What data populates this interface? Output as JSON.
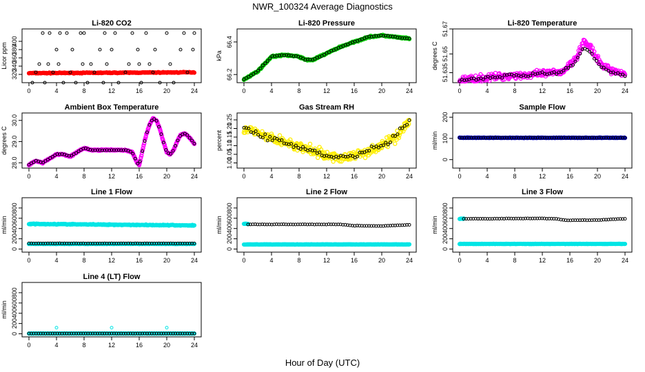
{
  "figure": {
    "title": "NWR_100324  Average Diagnostics",
    "xlabel": "Hour of Day (UTC)"
  },
  "chart_data": [
    {
      "type": "scatter",
      "title": "Li-820 CO2",
      "ylabel": "Licor ppm",
      "xlim": [
        0,
        24
      ],
      "ylim": [
        300,
        430
      ],
      "xticks": [
        "0",
        "4",
        "8",
        "12",
        "16",
        "20",
        "24"
      ],
      "yticks": [
        "320",
        "340",
        "360",
        "380",
        "400"
      ],
      "series": [
        {
          "name": "fill",
          "color": "#ff0000",
          "style": "dense-band",
          "x_start": 0,
          "x_end": 24,
          "y_start": 323,
          "y_end": 325,
          "jitter": 1.5
        },
        {
          "name": "points",
          "color": "#000000",
          "style": "scatter",
          "x": [
            0.5,
            1,
            1.5,
            2,
            2.3,
            2.8,
            3,
            3.5,
            4,
            4.3,
            4.5,
            5,
            5.5,
            6,
            6.3,
            6.8,
            7.5,
            7.8,
            8,
            8.5,
            9,
            9.5,
            10.3,
            10.8,
            11,
            11.3,
            12,
            12.5,
            13,
            14,
            14.5,
            15,
            15.8,
            16,
            16.3,
            17,
            17.5,
            18,
            18.3,
            19,
            20,
            20.5,
            21,
            22,
            22.5,
            23,
            23.8,
            24
          ],
          "y": [
            300,
            325,
            345,
            420,
            300,
            345,
            420,
            325,
            380,
            345,
            420,
            300,
            420,
            325,
            380,
            300,
            420,
            345,
            420,
            300,
            345,
            325,
            380,
            300,
            420,
            345,
            380,
            420,
            300,
            325,
            345,
            420,
            380,
            345,
            300,
            420,
            345,
            325,
            380,
            300,
            420,
            345,
            300,
            380,
            420,
            325,
            380,
            420
          ]
        }
      ]
    },
    {
      "type": "scatter",
      "title": "Li-820 Pressure",
      "ylabel": "kPa",
      "xlim": [
        0,
        24
      ],
      "ylim": [
        66.15,
        66.48
      ],
      "xticks": [
        "0",
        "4",
        "8",
        "12",
        "16",
        "20",
        "24"
      ],
      "yticks": [
        "66.2",
        "66.4"
      ],
      "series": [
        {
          "name": "fill",
          "color": "#00cc00",
          "style": "line-band",
          "x": [
            0,
            2,
            4,
            6,
            8,
            9,
            10,
            12,
            14,
            16,
            18,
            20,
            22,
            24
          ],
          "y": [
            66.17,
            66.22,
            66.31,
            66.32,
            66.31,
            66.29,
            66.29,
            66.33,
            66.37,
            66.4,
            66.43,
            66.44,
            66.43,
            66.42
          ],
          "jitter": 0.006
        },
        {
          "name": "points",
          "color": "#000000",
          "style": "line-points",
          "x": [
            0,
            2,
            4,
            6,
            8,
            9,
            10,
            12,
            14,
            16,
            18,
            20,
            22,
            24
          ],
          "y": [
            66.17,
            66.22,
            66.31,
            66.32,
            66.31,
            66.29,
            66.29,
            66.33,
            66.37,
            66.4,
            66.43,
            66.44,
            66.43,
            66.42
          ],
          "jitter": 0.004
        }
      ]
    },
    {
      "type": "scatter",
      "title": "Li-820 Temperature",
      "ylabel": "degrees C",
      "xlim": [
        0,
        24
      ],
      "ylim": [
        51.627,
        51.67
      ],
      "xticks": [
        "0",
        "4",
        "8",
        "12",
        "16",
        "20",
        "24"
      ],
      "yticks": [
        "51.635",
        "51.65",
        "51.67"
      ],
      "series": [
        {
          "name": "fill",
          "color": "#ff00ff",
          "style": "ring-band",
          "x": [
            0,
            2,
            4,
            6,
            8,
            10,
            12,
            14,
            15,
            16,
            17,
            18,
            19,
            20,
            21,
            22,
            23,
            24
          ],
          "y": [
            51.629,
            51.63,
            51.631,
            51.632,
            51.633,
            51.633,
            51.634,
            51.635,
            51.636,
            51.642,
            51.648,
            51.66,
            51.655,
            51.645,
            51.64,
            51.637,
            51.635,
            51.634
          ],
          "jitter": 0.004
        },
        {
          "name": "points",
          "color": "#000000",
          "style": "line-points",
          "x": [
            0,
            2,
            4,
            6,
            8,
            10,
            12,
            14,
            15,
            16,
            17,
            18,
            19,
            20,
            21,
            22,
            23,
            24
          ],
          "y": [
            51.629,
            51.63,
            51.631,
            51.632,
            51.633,
            51.633,
            51.634,
            51.635,
            51.636,
            51.64,
            51.646,
            51.655,
            51.652,
            51.642,
            51.638,
            51.636,
            51.634,
            51.632
          ],
          "jitter": 0.002
        }
      ]
    },
    {
      "type": "scatter",
      "title": "Ambient Box Temperature",
      "ylabel": "degrees C",
      "xlim": [
        0,
        24
      ],
      "ylim": [
        27.75,
        30.35
      ],
      "xticks": [
        "0",
        "4",
        "8",
        "12",
        "16",
        "20",
        "24"
      ],
      "yticks": [
        "28.0",
        "29.0",
        "30.0"
      ],
      "series": [
        {
          "name": "fill",
          "color": "#ff00ff",
          "style": "line-band",
          "x": [
            0,
            0.5,
            1,
            2,
            3,
            4,
            5,
            6,
            7,
            8,
            9,
            10,
            11,
            12,
            13,
            14,
            15,
            15.7,
            16,
            16.5,
            17,
            17.5,
            18,
            18.5,
            19,
            19.5,
            20,
            20.5,
            21,
            21.5,
            22,
            22.5,
            23,
            23.5,
            24
          ],
          "y": [
            27.9,
            28.0,
            28.1,
            28.0,
            28.2,
            28.4,
            28.4,
            28.3,
            28.5,
            28.7,
            28.6,
            28.6,
            28.6,
            28.6,
            28.6,
            28.6,
            28.5,
            28.0,
            27.9,
            28.6,
            29.3,
            29.8,
            30.1,
            30.0,
            29.6,
            29.0,
            28.5,
            28.4,
            28.6,
            29.0,
            29.3,
            29.4,
            29.3,
            29.1,
            28.9
          ],
          "jitter": 0.04
        },
        {
          "name": "points",
          "color": "#000000",
          "style": "line-points",
          "x": [
            0,
            0.5,
            1,
            2,
            3,
            4,
            5,
            6,
            7,
            8,
            9,
            10,
            11,
            12,
            13,
            14,
            15,
            15.7,
            16,
            16.5,
            17,
            17.5,
            18,
            18.5,
            19,
            19.5,
            20,
            20.5,
            21,
            21.5,
            22,
            22.5,
            23,
            23.5,
            24
          ],
          "y": [
            27.9,
            28.0,
            28.1,
            28.0,
            28.2,
            28.4,
            28.4,
            28.3,
            28.5,
            28.7,
            28.6,
            28.6,
            28.6,
            28.6,
            28.6,
            28.6,
            28.5,
            28.0,
            27.9,
            28.6,
            29.3,
            29.8,
            30.1,
            30.0,
            29.6,
            29.0,
            28.5,
            28.4,
            28.6,
            29.0,
            29.3,
            29.4,
            29.3,
            29.1,
            28.9
          ],
          "jitter": 0.02
        }
      ]
    },
    {
      "type": "scatter",
      "title": "Gas Stream RH",
      "ylabel": "percent",
      "xlim": [
        0,
        24
      ],
      "ylim": [
        0.97,
        1.29
      ],
      "xticks": [
        "0",
        "4",
        "8",
        "12",
        "16",
        "20",
        "24"
      ],
      "yticks": [
        "1.00",
        "1.05",
        "1.10",
        "1.15",
        "1.20",
        "1.25"
      ],
      "series": [
        {
          "name": "fill",
          "color": "#ffee00",
          "style": "ring-band",
          "x": [
            0,
            2,
            4,
            6,
            8,
            10,
            12,
            14,
            16,
            18,
            20,
            22,
            23,
            24
          ],
          "y": [
            1.2,
            1.17,
            1.14,
            1.12,
            1.09,
            1.07,
            1.04,
            1.03,
            1.04,
            1.07,
            1.1,
            1.15,
            1.2,
            1.24
          ],
          "jitter": 0.04
        },
        {
          "name": "points",
          "color": "#000000",
          "style": "line-points",
          "x": [
            0,
            2,
            4,
            6,
            8,
            10,
            12,
            14,
            16,
            18,
            20,
            22,
            23,
            24
          ],
          "y": [
            1.2,
            1.17,
            1.14,
            1.12,
            1.09,
            1.07,
            1.04,
            1.03,
            1.04,
            1.07,
            1.1,
            1.15,
            1.2,
            1.24
          ],
          "jitter": 0.025
        }
      ]
    },
    {
      "type": "scatter",
      "title": "Sample Flow",
      "ylabel": "ml/min",
      "xlim": [
        0,
        24
      ],
      "ylim": [
        -40,
        220
      ],
      "xticks": [
        "0",
        "4",
        "8",
        "12",
        "16",
        "20",
        "24"
      ],
      "yticks": [
        "0",
        "100",
        "200"
      ],
      "series": [
        {
          "name": "fill",
          "color": "#0000cc",
          "style": "dense-band",
          "x_start": 0,
          "x_end": 24,
          "y_start": 103,
          "y_end": 103,
          "jitter": 1.5
        },
        {
          "name": "points",
          "color": "#000000",
          "style": "line-points",
          "x": [
            0,
            24
          ],
          "y": [
            103,
            103
          ],
          "jitter": 0.8
        }
      ]
    },
    {
      "type": "scatter",
      "title": "Line 1 Flow",
      "ylabel": "ml/min",
      "xlim": [
        0,
        24
      ],
      "ylim": [
        -60,
        1000
      ],
      "xticks": [
        "0",
        "4",
        "8",
        "12",
        "16",
        "20",
        "24"
      ],
      "yticks": [
        "0",
        "200",
        "400",
        "600",
        "800"
      ],
      "series": [
        {
          "name": "fill",
          "color": "#00e5e5",
          "style": "dense-band",
          "x_start": 0,
          "x_end": 24,
          "y_start": 490,
          "y_end": 460,
          "jitter": 12
        },
        {
          "name": "fill2",
          "color": "#00e5e5",
          "style": "dense-band",
          "x_start": 0,
          "x_end": 24,
          "y_start": 100,
          "y_end": 100,
          "jitter": 4
        },
        {
          "name": "points",
          "color": "#000000",
          "style": "line-points",
          "x": [
            0,
            24
          ],
          "y": [
            110,
            110
          ],
          "jitter": 3
        }
      ]
    },
    {
      "type": "scatter",
      "title": "Line 2 Flow",
      "ylabel": "ml/min",
      "xlim": [
        0,
        24
      ],
      "ylim": [
        -60,
        1000
      ],
      "xticks": [
        "0",
        "4",
        "8",
        "12",
        "16",
        "20",
        "24"
      ],
      "yticks": [
        "0",
        "200",
        "400",
        "600",
        "800"
      ],
      "series": [
        {
          "name": "fill",
          "color": "#00e5e5",
          "style": "dense-band",
          "x_start": 0,
          "x_end": 24,
          "y_start": 90,
          "y_end": 90,
          "jitter": 4
        },
        {
          "name": "fill2",
          "color": "#00e5e5",
          "style": "dense-band",
          "x_start": 0,
          "x_end": 0.6,
          "y_start": 490,
          "y_end": 490,
          "jitter": 6
        },
        {
          "name": "points",
          "color": "#000000",
          "style": "line-points",
          "x": [
            0.6,
            4,
            8,
            12,
            14,
            16,
            20,
            24
          ],
          "y": [
            480,
            480,
            480,
            480,
            480,
            455,
            450,
            470
          ],
          "jitter": 5
        }
      ]
    },
    {
      "type": "scatter",
      "title": "Line 3 Flow",
      "ylabel": "ml/min",
      "xlim": [
        0,
        24
      ],
      "ylim": [
        -60,
        1000
      ],
      "xticks": [
        "0",
        "4",
        "8",
        "12",
        "16",
        "20",
        "24"
      ],
      "yticks": [
        "0",
        "200",
        "400",
        "600",
        "800"
      ],
      "series": [
        {
          "name": "fill",
          "color": "#00e5e5",
          "style": "dense-band",
          "x_start": 0,
          "x_end": 24,
          "y_start": 100,
          "y_end": 100,
          "jitter": 4
        },
        {
          "name": "fill2",
          "color": "#00e5e5",
          "style": "dense-band",
          "x_start": 0,
          "x_end": 0.6,
          "y_start": 590,
          "y_end": 590,
          "jitter": 6
        },
        {
          "name": "points",
          "color": "#000000",
          "style": "line-points",
          "x": [
            0.6,
            4,
            8,
            12,
            14,
            15.5,
            16,
            20,
            24
          ],
          "y": [
            590,
            590,
            595,
            595,
            590,
            560,
            560,
            565,
            590
          ],
          "jitter": 5
        }
      ]
    },
    {
      "type": "scatter",
      "title": "Line 4 (LT) Flow",
      "ylabel": "ml/min",
      "xlim": [
        0,
        24
      ],
      "ylim": [
        -60,
        1000
      ],
      "xticks": [
        "0",
        "4",
        "8",
        "12",
        "16",
        "20",
        "24"
      ],
      "yticks": [
        "0",
        "200",
        "400",
        "600",
        "800"
      ],
      "series": [
        {
          "name": "fill",
          "color": "#00e5e5",
          "style": "dense-band",
          "x_start": 0,
          "x_end": 24,
          "y_start": 5,
          "y_end": 5,
          "jitter": 2
        },
        {
          "name": "points",
          "color": "#000000",
          "style": "line-points",
          "x": [
            0,
            24
          ],
          "y": [
            5,
            5
          ],
          "jitter": 1
        },
        {
          "name": "outliers",
          "color": "#00e5e5",
          "style": "scatter",
          "x": [
            4,
            12,
            20
          ],
          "y": [
            120,
            120,
            120
          ]
        }
      ]
    }
  ]
}
